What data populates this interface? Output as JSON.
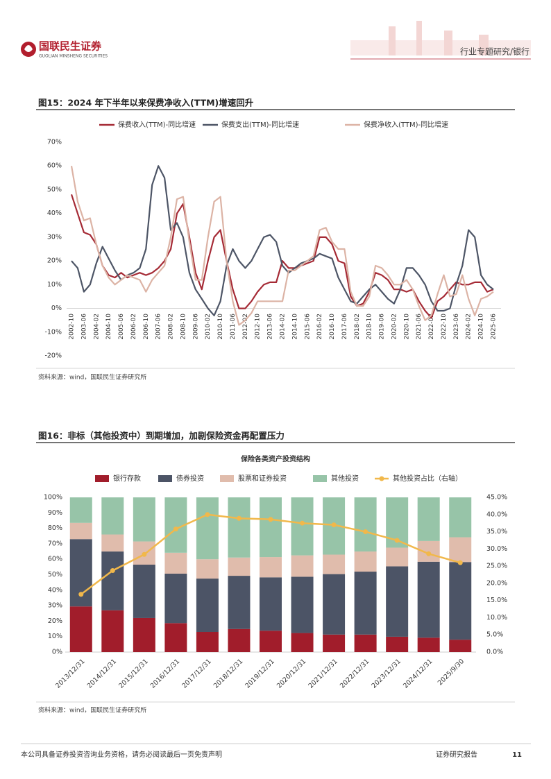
{
  "header": {
    "brand": "国联民生证券",
    "brand_en": "GUOLIAN MINSHENG SECURITIES",
    "section": "行业专题研究/银行"
  },
  "chart_data": [
    {
      "type": "line",
      "caption": "图15：2024 年下半年以来保费净收入(TTM)增速回升",
      "source": "资料来源：wind，国联民生证券研究所",
      "categories": [
        "2002-10",
        null,
        "2003-06",
        null,
        "2004-02",
        null,
        "2004-10",
        null,
        "2005-06",
        null,
        "2006-02",
        null,
        "2006-10",
        null,
        "2007-06",
        null,
        "2008-02",
        null,
        "2008-10",
        null,
        "2009-06",
        null,
        "2010-02",
        null,
        "2010-10",
        null,
        "2011-06",
        null,
        "2012-02",
        null,
        "2012-10",
        null,
        "2013-06",
        null,
        "2014-02",
        null,
        "2014-10",
        null,
        "2015-06",
        null,
        "2016-02",
        null,
        "2016-10",
        null,
        "2017-06",
        null,
        "2018-02",
        null,
        "2018-10",
        null,
        "2019-06",
        null,
        "2020-02",
        null,
        "2020-10",
        null,
        "2021-06",
        null,
        "2022-02",
        null,
        "2022-10",
        null,
        "2023-06",
        null,
        "2024-02",
        null,
        "2024-10",
        null,
        "2025-06"
      ],
      "series": [
        {
          "name": "保费收入(TTM)-同比增速",
          "color": "#a52a35",
          "values": [
            48,
            40,
            32,
            31,
            27,
            18,
            14,
            13,
            15,
            13,
            14,
            15,
            14,
            15,
            17,
            20,
            25,
            40,
            44,
            30,
            15,
            8,
            20,
            30,
            33,
            20,
            8,
            0,
            0,
            3,
            7,
            10,
            11,
            11,
            20,
            17,
            17,
            18,
            19,
            20,
            30,
            30,
            27,
            20,
            19,
            5,
            1,
            2,
            7,
            15,
            14,
            12,
            8,
            8,
            7,
            8,
            3,
            -1,
            -4,
            3,
            5,
            8,
            11,
            10,
            10,
            11,
            11,
            7,
            8
          ]
        },
        {
          "name": "保费支出(TTM)-同比增速",
          "color": "#4d5566",
          "values": [
            20,
            17,
            7,
            10,
            19,
            26,
            21,
            16,
            12,
            14,
            15,
            17,
            25,
            52,
            60,
            55,
            33,
            36,
            30,
            15,
            8,
            4,
            0,
            -3,
            3,
            18,
            25,
            20,
            17,
            20,
            25,
            30,
            31,
            28,
            18,
            15,
            17,
            19,
            20,
            21,
            23,
            22,
            21,
            13,
            8,
            3,
            2,
            5,
            8,
            10,
            7,
            4,
            2,
            8,
            17,
            17,
            14,
            10,
            3,
            -1,
            -1,
            0,
            10,
            18,
            33,
            30,
            14,
            10,
            8
          ]
        },
        {
          "name": "保费净收入(TTM)-同比增速",
          "color": "#dcb3a5",
          "values": [
            60,
            45,
            37,
            38,
            27,
            18,
            13,
            10,
            12,
            14,
            13,
            12,
            7,
            12,
            15,
            18,
            30,
            46,
            47,
            28,
            12,
            12,
            30,
            45,
            47,
            20,
            3,
            -7,
            -5,
            -2,
            3,
            3,
            3,
            3,
            3,
            16,
            16,
            18,
            20,
            22,
            33,
            34,
            28,
            25,
            25,
            7,
            1,
            1,
            5,
            18,
            17,
            14,
            10,
            10,
            12,
            8,
            1,
            -5,
            -3,
            6,
            14,
            5,
            6,
            14,
            4,
            -3,
            4,
            5,
            7
          ]
        }
      ],
      "ylim": [
        -20,
        70
      ],
      "yticks": [
        {
          "value": -20,
          "label": "-20%"
        },
        {
          "value": -10,
          "label": "-10%"
        },
        {
          "value": 0,
          "label": "0%"
        },
        {
          "value": 10,
          "label": "10%"
        },
        {
          "value": 20,
          "label": "20%"
        },
        {
          "value": 30,
          "label": "30%"
        },
        {
          "value": 40,
          "label": "40%"
        },
        {
          "value": 50,
          "label": "50%"
        },
        {
          "value": 60,
          "label": "60%"
        },
        {
          "value": 70,
          "label": "70%"
        }
      ]
    },
    {
      "type": "bar",
      "caption": "图16：非标（其他投资中）到期增加，加剧保险资金再配置压力",
      "title": "保险各类资产投资结构",
      "source": "资料来源：wind，国联民生证券研究所",
      "categories": [
        "2013/12/31",
        "2014/12/31",
        "2015/12/31",
        "2016/12/31",
        "2017/12/31",
        "2018/12/31",
        "2019/12/31",
        "2020/12/31",
        "2021/12/31",
        "2022/12/31",
        "2023/12/31",
        "2024/12/31",
        "2025/9/30"
      ],
      "series": [
        {
          "name": "银行存款",
          "color": "#a11d2b",
          "values": [
            29.5,
            27,
            22,
            18.7,
            13,
            14.9,
            13.8,
            12.3,
            11.3,
            11.3,
            9.9,
            9.3,
            8
          ]
        },
        {
          "name": "债券投资",
          "color": "#4c5466",
          "values": [
            43.5,
            38,
            34.5,
            32,
            34.5,
            34.4,
            34.5,
            36.4,
            39.1,
            40.7,
            45.5,
            49.1,
            50.2
          ]
        },
        {
          "name": "股票和证券投资",
          "color": "#e0bcac",
          "values": [
            10.5,
            11,
            15,
            13.5,
            12.5,
            11.8,
            13.1,
            13.8,
            12.6,
            13,
            12.1,
            13.4,
            16
          ]
        },
        {
          "name": "其他投资",
          "color": "#97c4a8",
          "values": [
            16.5,
            24,
            28.5,
            35.8,
            40,
            38.9,
            38.6,
            37.5,
            37,
            35,
            32.5,
            28.2,
            25.8
          ]
        },
        {
          "name": "其他投资占比（右轴）",
          "color": "#f1b84b",
          "type": "line",
          "axis": "y2",
          "values": [
            16.8,
            23.7,
            28.4,
            35.8,
            40,
            38.9,
            38.6,
            37.5,
            37,
            35,
            32.5,
            28.6,
            26
          ]
        }
      ],
      "stacked": true,
      "ylim": [
        0,
        100
      ],
      "yticks": [
        {
          "value": 0,
          "label": "0%"
        },
        {
          "value": 10,
          "label": "10%"
        },
        {
          "value": 20,
          "label": "20%"
        },
        {
          "value": 30,
          "label": "30%"
        },
        {
          "value": 40,
          "label": "40%"
        },
        {
          "value": 50,
          "label": "50%"
        },
        {
          "value": 60,
          "label": "60%"
        },
        {
          "value": 70,
          "label": "70%"
        },
        {
          "value": 80,
          "label": "80%"
        },
        {
          "value": 90,
          "label": "90%"
        },
        {
          "value": 100,
          "label": "100%"
        }
      ],
      "y2lim": [
        0,
        45
      ],
      "y2ticks": [
        {
          "value": 0,
          "label": "0.0%"
        },
        {
          "value": 5,
          "label": "5.0%"
        },
        {
          "value": 10,
          "label": "10.0%"
        },
        {
          "value": 15,
          "label": "15.0%"
        },
        {
          "value": 20,
          "label": "20.0%"
        },
        {
          "value": 25,
          "label": "25.0%"
        },
        {
          "value": 30,
          "label": "30.0%"
        },
        {
          "value": 35,
          "label": "35.0%"
        },
        {
          "value": 40,
          "label": "40.0%"
        },
        {
          "value": 45,
          "label": "45.0%"
        }
      ]
    }
  ],
  "footer": {
    "disclaimer": "本公司具备证券投资咨询业务资格，请务必阅读最后一页免责声明",
    "report": "证券研究报告",
    "page": "11"
  }
}
